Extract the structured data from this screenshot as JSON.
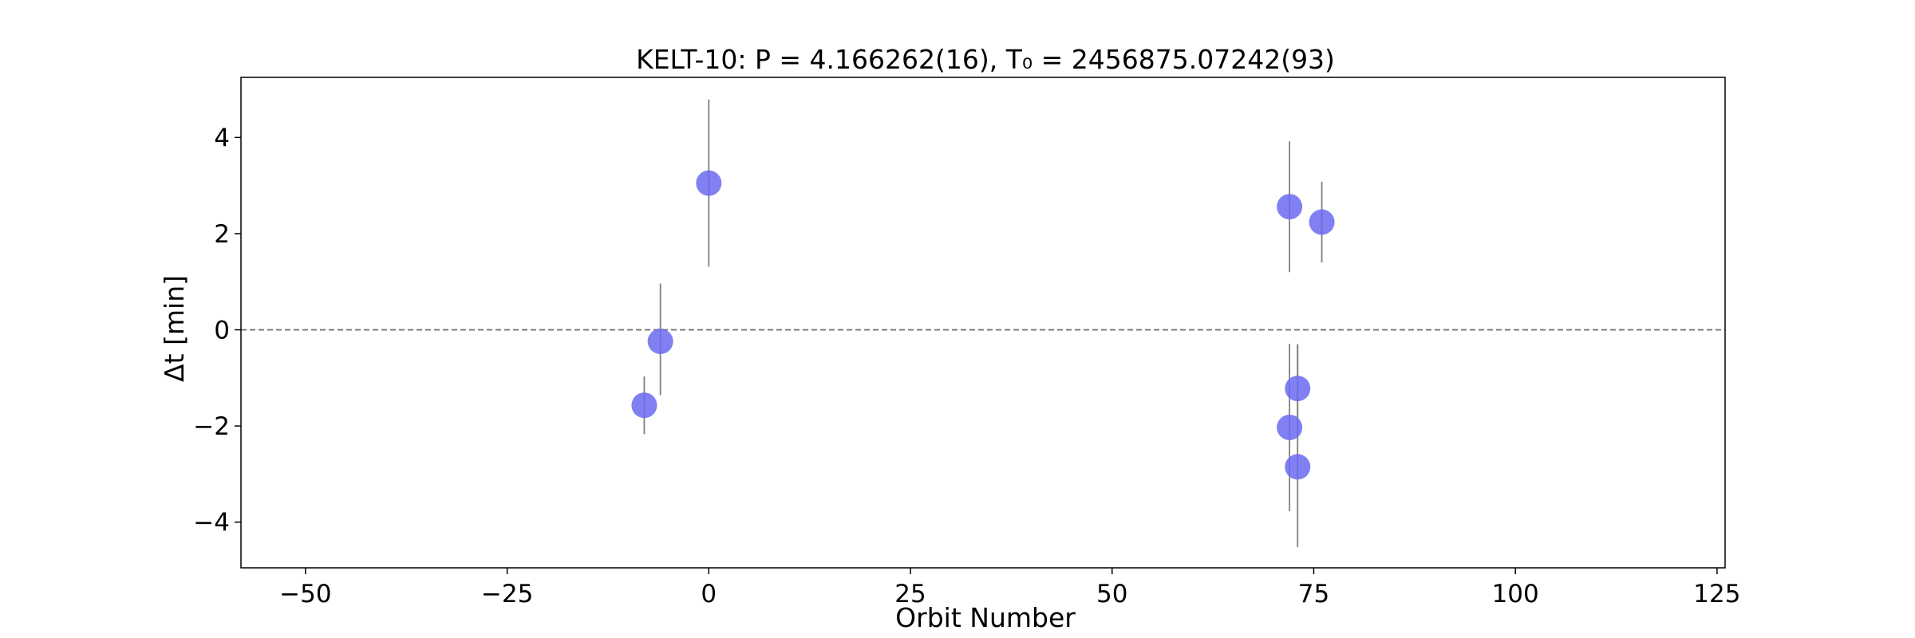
{
  "chart_data": {
    "type": "scatter",
    "title": "KELT-10: P = 4.166262(16), T₀ = 2456875.07242(93)",
    "xlabel": "Orbit Number",
    "ylabel": "Δt [min]",
    "xlim": [
      -58,
      126
    ],
    "ylim": [
      -4.95,
      5.25
    ],
    "xticks": [
      -50,
      -25,
      0,
      25,
      50,
      75,
      100,
      125
    ],
    "xtick_labels": [
      "−50",
      "−25",
      "0",
      "25",
      "50",
      "75",
      "100",
      "125"
    ],
    "yticks": [
      -4,
      -2,
      0,
      2,
      4
    ],
    "ytick_labels": [
      "−4",
      "−2",
      "0",
      "2",
      "4"
    ],
    "reference_line": {
      "y": 0,
      "style": "dashed",
      "color": "#777777"
    },
    "grid": false,
    "marker_color": "#6a6af0",
    "errorbar_color": "#808080",
    "points": [
      {
        "x": -8,
        "y": -1.57,
        "yerr_low": 0.6,
        "yerr_high": 0.6
      },
      {
        "x": -6,
        "y": -0.24,
        "yerr_low": 1.12,
        "yerr_high": 1.2
      },
      {
        "x": 0,
        "y": 3.05,
        "yerr_low": 1.74,
        "yerr_high": 1.74
      },
      {
        "x": 72,
        "y": 2.56,
        "yerr_low": 1.36,
        "yerr_high": 1.36
      },
      {
        "x": 72,
        "y": -2.03,
        "yerr_low": 1.74,
        "yerr_high": 1.74
      },
      {
        "x": 73,
        "y": -1.22,
        "yerr_low": 0.92,
        "yerr_high": 0.92
      },
      {
        "x": 73,
        "y": -2.85,
        "yerr_low": 1.67,
        "yerr_high": 2.55
      },
      {
        "x": 76,
        "y": 2.24,
        "yerr_low": 0.84,
        "yerr_high": 0.84
      }
    ]
  }
}
